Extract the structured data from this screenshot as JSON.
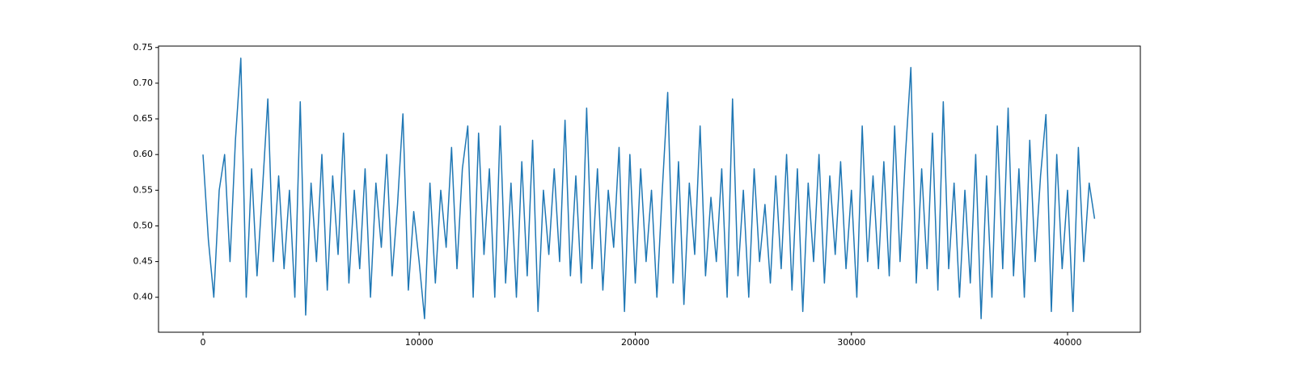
{
  "chart_data": {
    "type": "line",
    "xlim": [
      -2058,
      43367
    ],
    "ylim": [
      0.351,
      0.752
    ],
    "xticks": [
      0,
      10000,
      20000,
      30000,
      40000
    ],
    "yticks": [
      {
        "value": 0.4,
        "label": "0.40"
      },
      0.45,
      {
        "value": 0.5,
        "label": "0.50"
      },
      0.55,
      {
        "value": 0.6,
        "label": "0.60"
      },
      0.65,
      {
        "value": 0.7,
        "label": "0.70"
      },
      0.75
    ],
    "grid": false,
    "series": [
      {
        "color": "#1f77b4",
        "x": [
          0,
          250,
          500,
          750,
          1000,
          1250,
          1500,
          1750,
          2000,
          2250,
          2500,
          2750,
          3000,
          3250,
          3500,
          3750,
          4000,
          4250,
          4500,
          4750,
          5000,
          5250,
          5500,
          5750,
          6000,
          6250,
          6500,
          6750,
          7000,
          7250,
          7500,
          7750,
          8000,
          8250,
          8500,
          8750,
          9000,
          9250,
          9500,
          9750,
          10000,
          10250,
          10500,
          10750,
          11000,
          11250,
          11500,
          11750,
          12000,
          12250,
          12500,
          12750,
          13000,
          13250,
          13500,
          13750,
          14000,
          14250,
          14500,
          14750,
          15000,
          15250,
          15500,
          15750,
          16000,
          16250,
          16500,
          16750,
          17000,
          17250,
          17500,
          17750,
          18000,
          18250,
          18500,
          18750,
          19000,
          19250,
          19500,
          19750,
          20000,
          20250,
          20500,
          20750,
          21000,
          21250,
          21500,
          21750,
          22000,
          22250,
          22500,
          22750,
          23000,
          23250,
          23500,
          23750,
          24000,
          24250,
          24500,
          24750,
          25000,
          25250,
          25500,
          25750,
          26000,
          26250,
          26500,
          26750,
          27000,
          27250,
          27500,
          27750,
          28000,
          28250,
          28500,
          28750,
          29000,
          29250,
          29500,
          29750,
          30000,
          30250,
          30500,
          30750,
          31000,
          31250,
          31500,
          31750,
          32000,
          32250,
          32500,
          32750,
          33000,
          33250,
          33500,
          33750,
          34000,
          34250,
          34500,
          34750,
          35000,
          35250,
          35500,
          35750,
          36000,
          36250,
          36500,
          36750,
          37000,
          37250,
          37500,
          37750,
          38000,
          38250,
          38500,
          38750,
          39000,
          39250,
          39500,
          39750,
          40000,
          40250,
          40500,
          40750,
          41000,
          41250
        ],
        "values": [
          0.6,
          0.48,
          0.4,
          0.55,
          0.6,
          0.45,
          0.62,
          0.735,
          0.4,
          0.58,
          0.43,
          0.55,
          0.678,
          0.45,
          0.57,
          0.44,
          0.55,
          0.4,
          0.674,
          0.375,
          0.56,
          0.45,
          0.6,
          0.41,
          0.57,
          0.46,
          0.63,
          0.42,
          0.55,
          0.44,
          0.58,
          0.4,
          0.56,
          0.47,
          0.6,
          0.43,
          0.53,
          0.657,
          0.41,
          0.52,
          0.45,
          0.37,
          0.56,
          0.42,
          0.55,
          0.47,
          0.61,
          0.44,
          0.58,
          0.64,
          0.4,
          0.63,
          0.46,
          0.58,
          0.4,
          0.64,
          0.42,
          0.56,
          0.4,
          0.59,
          0.43,
          0.62,
          0.38,
          0.55,
          0.46,
          0.58,
          0.45,
          0.648,
          0.43,
          0.57,
          0.42,
          0.665,
          0.44,
          0.58,
          0.41,
          0.55,
          0.47,
          0.61,
          0.38,
          0.6,
          0.42,
          0.58,
          0.45,
          0.55,
          0.4,
          0.55,
          0.687,
          0.42,
          0.59,
          0.39,
          0.56,
          0.46,
          0.64,
          0.43,
          0.54,
          0.45,
          0.58,
          0.4,
          0.678,
          0.43,
          0.55,
          0.4,
          0.58,
          0.45,
          0.53,
          0.42,
          0.57,
          0.44,
          0.6,
          0.41,
          0.58,
          0.38,
          0.56,
          0.45,
          0.6,
          0.42,
          0.57,
          0.46,
          0.59,
          0.44,
          0.55,
          0.4,
          0.64,
          0.45,
          0.57,
          0.44,
          0.59,
          0.43,
          0.64,
          0.45,
          0.6,
          0.722,
          0.42,
          0.58,
          0.44,
          0.63,
          0.41,
          0.674,
          0.44,
          0.56,
          0.4,
          0.55,
          0.42,
          0.6,
          0.37,
          0.57,
          0.4,
          0.64,
          0.44,
          0.665,
          0.43,
          0.58,
          0.4,
          0.62,
          0.45,
          0.57,
          0.656,
          0.38,
          0.6,
          0.44,
          0.55,
          0.38,
          0.61,
          0.45,
          0.56,
          0.51
        ]
      }
    ]
  }
}
